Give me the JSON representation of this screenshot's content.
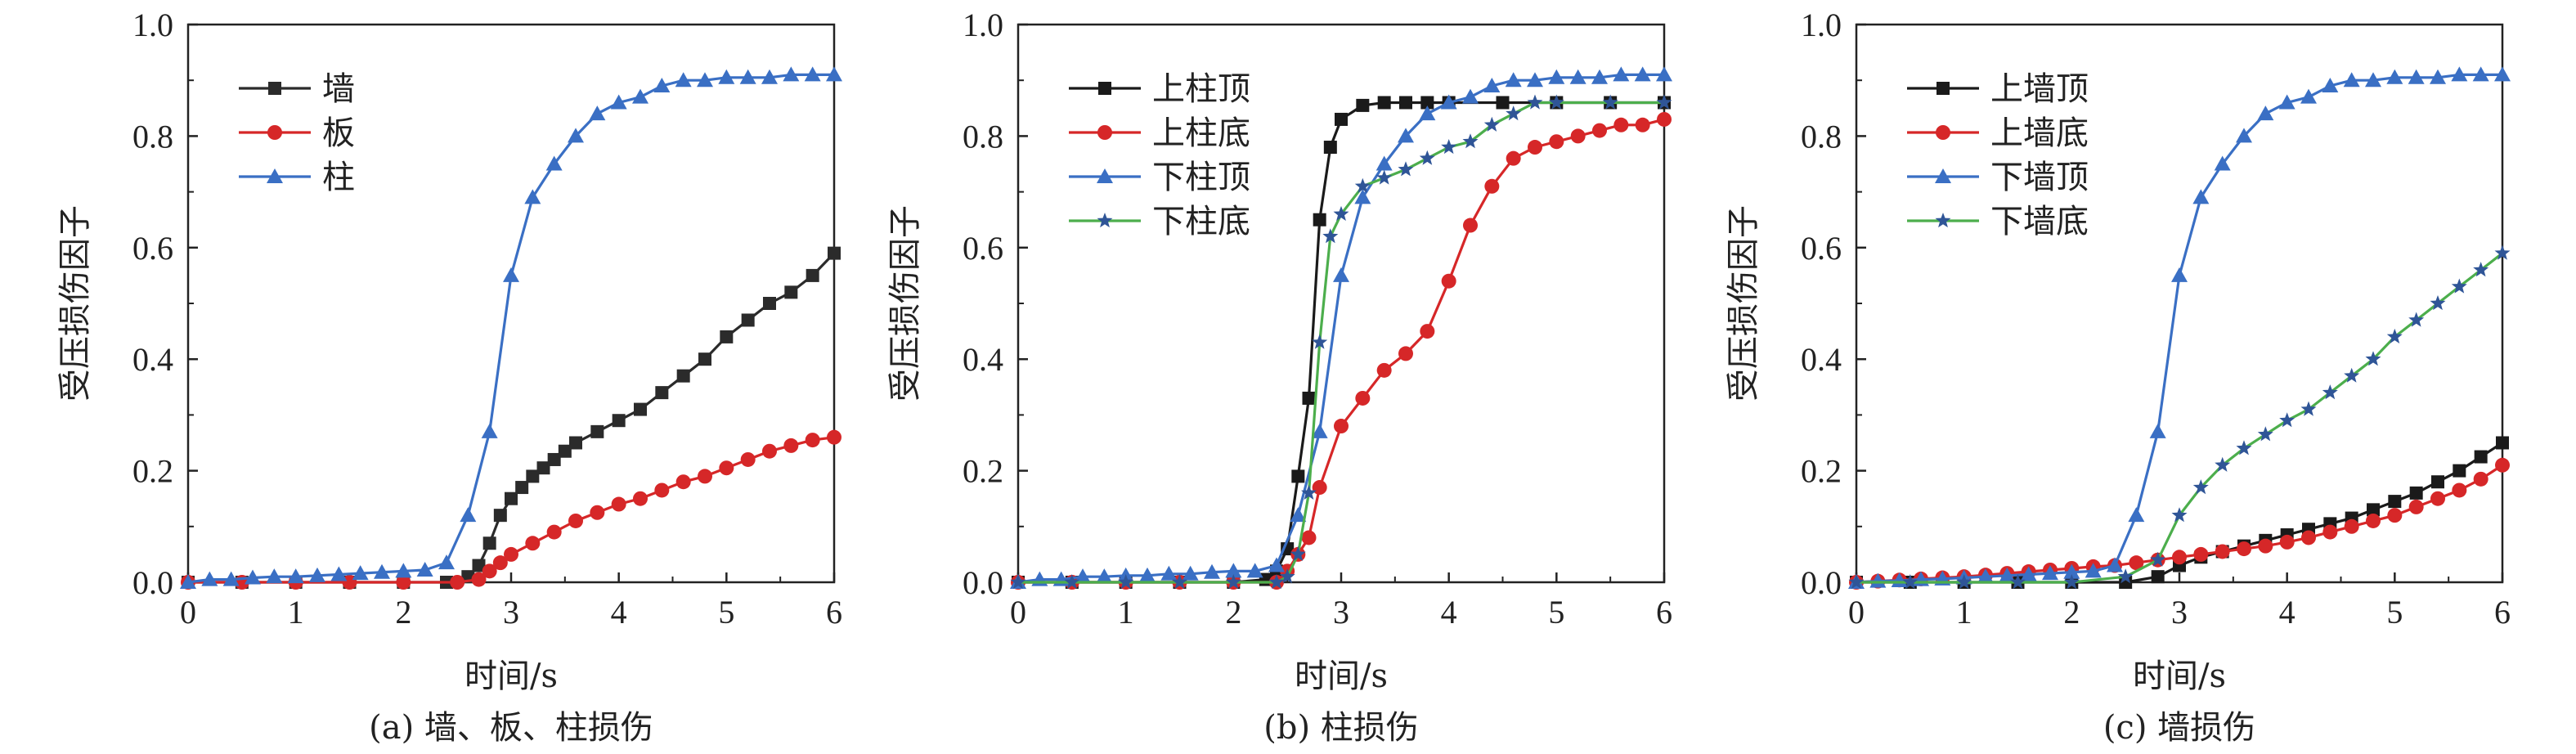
{
  "chart_data": [
    {
      "type": "line",
      "caption": "(a) 墙、板、柱损伤",
      "xlabel": "时间/s",
      "ylabel": "受压损伤因子",
      "xlim": [
        0,
        6
      ],
      "ylim": [
        0,
        1.0
      ],
      "xticks": [
        "0",
        "1",
        "2",
        "3",
        "4",
        "5",
        "6"
      ],
      "yticks": [
        "0.0",
        "0.2",
        "0.4",
        "0.6",
        "0.8",
        "1.0"
      ],
      "legend_position": "top-left",
      "series": [
        {
          "name": "墙",
          "color": "#2b2b2b",
          "marker": "square",
          "x": [
            0,
            0.5,
            1.0,
            1.5,
            2.0,
            2.4,
            2.6,
            2.7,
            2.8,
            2.9,
            3.0,
            3.1,
            3.2,
            3.3,
            3.4,
            3.5,
            3.6,
            3.8,
            4.0,
            4.2,
            4.4,
            4.6,
            4.8,
            5.0,
            5.2,
            5.4,
            5.6,
            5.8,
            6.0
          ],
          "y": [
            0.0,
            0.0,
            0.0,
            0.0,
            0.0,
            0.0,
            0.01,
            0.03,
            0.07,
            0.12,
            0.15,
            0.17,
            0.19,
            0.205,
            0.22,
            0.235,
            0.25,
            0.27,
            0.29,
            0.31,
            0.34,
            0.37,
            0.4,
            0.44,
            0.47,
            0.5,
            0.52,
            0.55,
            0.59
          ]
        },
        {
          "name": "板",
          "color": "#d62728",
          "marker": "circle",
          "x": [
            0,
            0.5,
            1.0,
            1.5,
            2.0,
            2.5,
            2.7,
            2.8,
            2.9,
            3.0,
            3.2,
            3.4,
            3.6,
            3.8,
            4.0,
            4.2,
            4.4,
            4.6,
            4.8,
            5.0,
            5.2,
            5.4,
            5.6,
            5.8,
            6.0
          ],
          "y": [
            0.0,
            0.0,
            0.0,
            0.0,
            0.0,
            0.0,
            0.005,
            0.02,
            0.035,
            0.05,
            0.07,
            0.09,
            0.11,
            0.125,
            0.14,
            0.15,
            0.165,
            0.18,
            0.19,
            0.205,
            0.22,
            0.235,
            0.245,
            0.255,
            0.26
          ]
        },
        {
          "name": "柱",
          "color": "#3a6fc4",
          "marker": "triangle",
          "x": [
            0,
            0.2,
            0.4,
            0.6,
            0.8,
            1.0,
            1.2,
            1.4,
            1.6,
            1.8,
            2.0,
            2.2,
            2.4,
            2.6,
            2.8,
            3.0,
            3.2,
            3.4,
            3.6,
            3.8,
            4.0,
            4.2,
            4.4,
            4.6,
            4.8,
            5.0,
            5.2,
            5.4,
            5.6,
            5.8,
            6.0
          ],
          "y": [
            0.0,
            0.005,
            0.005,
            0.008,
            0.01,
            0.01,
            0.012,
            0.014,
            0.016,
            0.018,
            0.02,
            0.022,
            0.035,
            0.12,
            0.27,
            0.55,
            0.69,
            0.75,
            0.8,
            0.84,
            0.86,
            0.87,
            0.89,
            0.9,
            0.9,
            0.905,
            0.905,
            0.905,
            0.91,
            0.91,
            0.91
          ]
        }
      ]
    },
    {
      "type": "line",
      "caption": "(b) 柱损伤",
      "xlabel": "时间/s",
      "ylabel": "受压损伤因子",
      "xlim": [
        0,
        6
      ],
      "ylim": [
        0,
        1.0
      ],
      "xticks": [
        "0",
        "1",
        "2",
        "3",
        "4",
        "5",
        "6"
      ],
      "yticks": [
        "0.0",
        "0.2",
        "0.4",
        "0.6",
        "0.8",
        "1.0"
      ],
      "legend_position": "top-left",
      "series": [
        {
          "name": "上柱顶",
          "color": "#1a1a1a",
          "marker": "square",
          "x": [
            0,
            0.5,
            1.0,
            1.5,
            2.0,
            2.3,
            2.4,
            2.5,
            2.6,
            2.7,
            2.8,
            2.9,
            3.0,
            3.2,
            3.4,
            3.6,
            3.8,
            4.0,
            4.5,
            5.0,
            5.5,
            6.0
          ],
          "y": [
            0.0,
            0.0,
            0.0,
            0.0,
            0.0,
            0.005,
            0.02,
            0.06,
            0.19,
            0.33,
            0.65,
            0.78,
            0.83,
            0.855,
            0.86,
            0.86,
            0.86,
            0.86,
            0.86,
            0.86,
            0.86,
            0.86
          ]
        },
        {
          "name": "上柱底",
          "color": "#d62728",
          "marker": "circle",
          "x": [
            0,
            0.5,
            1.0,
            1.5,
            2.0,
            2.4,
            2.5,
            2.6,
            2.7,
            2.8,
            3.0,
            3.2,
            3.4,
            3.6,
            3.8,
            4.0,
            4.2,
            4.4,
            4.6,
            4.8,
            5.0,
            5.2,
            5.4,
            5.6,
            5.8,
            6.0
          ],
          "y": [
            0.0,
            0.0,
            0.0,
            0.0,
            0.0,
            0.0,
            0.02,
            0.05,
            0.08,
            0.17,
            0.28,
            0.33,
            0.38,
            0.41,
            0.45,
            0.54,
            0.64,
            0.71,
            0.76,
            0.78,
            0.79,
            0.8,
            0.81,
            0.82,
            0.82,
            0.83
          ]
        },
        {
          "name": "下柱顶",
          "color": "#3a6fc4",
          "marker": "triangle",
          "x": [
            0,
            0.2,
            0.4,
            0.6,
            0.8,
            1.0,
            1.2,
            1.4,
            1.6,
            1.8,
            2.0,
            2.2,
            2.4,
            2.6,
            2.8,
            3.0,
            3.2,
            3.4,
            3.6,
            3.8,
            4.0,
            4.2,
            4.4,
            4.6,
            4.8,
            5.0,
            5.2,
            5.4,
            5.6,
            5.8,
            6.0
          ],
          "y": [
            0.0,
            0.005,
            0.005,
            0.01,
            0.01,
            0.012,
            0.012,
            0.015,
            0.015,
            0.018,
            0.02,
            0.02,
            0.03,
            0.12,
            0.27,
            0.55,
            0.69,
            0.75,
            0.8,
            0.84,
            0.86,
            0.87,
            0.89,
            0.9,
            0.9,
            0.905,
            0.905,
            0.905,
            0.91,
            0.91,
            0.91
          ]
        },
        {
          "name": "下柱底",
          "color": "#2f5597",
          "line_color": "#4cae4c",
          "marker": "star",
          "x": [
            0,
            0.5,
            1.0,
            1.5,
            2.0,
            2.4,
            2.5,
            2.6,
            2.7,
            2.8,
            2.9,
            3.0,
            3.2,
            3.4,
            3.6,
            3.8,
            4.0,
            4.2,
            4.4,
            4.6,
            4.8,
            5.0,
            5.5,
            6.0
          ],
          "y": [
            0.0,
            0.0,
            0.0,
            0.0,
            0.0,
            0.0,
            0.01,
            0.05,
            0.16,
            0.43,
            0.62,
            0.66,
            0.71,
            0.725,
            0.74,
            0.76,
            0.78,
            0.79,
            0.82,
            0.84,
            0.86,
            0.86,
            0.86,
            0.86
          ]
        }
      ]
    },
    {
      "type": "line",
      "caption": "(c) 墙损伤",
      "xlabel": "时间/s",
      "ylabel": "受压损伤因子",
      "xlim": [
        0,
        6
      ],
      "ylim": [
        0,
        1.0
      ],
      "xticks": [
        "0",
        "1",
        "2",
        "3",
        "4",
        "5",
        "6"
      ],
      "yticks": [
        "0.0",
        "0.2",
        "0.4",
        "0.6",
        "0.8",
        "1.0"
      ],
      "legend_position": "top-left",
      "series": [
        {
          "name": "上墙顶",
          "color": "#1a1a1a",
          "marker": "square",
          "x": [
            0,
            0.5,
            1.0,
            1.5,
            2.0,
            2.5,
            2.8,
            3.0,
            3.2,
            3.4,
            3.6,
            3.8,
            4.0,
            4.2,
            4.4,
            4.6,
            4.8,
            5.0,
            5.2,
            5.4,
            5.6,
            5.8,
            6.0
          ],
          "y": [
            0.0,
            0.0,
            0.0,
            0.0,
            0.0,
            0.0,
            0.01,
            0.03,
            0.045,
            0.055,
            0.065,
            0.075,
            0.085,
            0.095,
            0.105,
            0.115,
            0.13,
            0.145,
            0.16,
            0.18,
            0.2,
            0.225,
            0.25
          ]
        },
        {
          "name": "上墙底",
          "color": "#d62728",
          "marker": "circle",
          "x": [
            0,
            0.2,
            0.4,
            0.6,
            0.8,
            1.0,
            1.2,
            1.4,
            1.6,
            1.8,
            2.0,
            2.2,
            2.4,
            2.6,
            2.8,
            3.0,
            3.2,
            3.4,
            3.6,
            3.8,
            4.0,
            4.2,
            4.4,
            4.6,
            4.8,
            5.0,
            5.2,
            5.4,
            5.6,
            5.8,
            6.0
          ],
          "y": [
            0.0,
            0.002,
            0.004,
            0.006,
            0.008,
            0.01,
            0.013,
            0.016,
            0.019,
            0.022,
            0.025,
            0.028,
            0.03,
            0.035,
            0.04,
            0.045,
            0.05,
            0.055,
            0.06,
            0.065,
            0.072,
            0.08,
            0.09,
            0.1,
            0.11,
            0.12,
            0.135,
            0.15,
            0.165,
            0.185,
            0.21
          ]
        },
        {
          "name": "下墙顶",
          "color": "#3a6fc4",
          "marker": "triangle",
          "x": [
            0,
            0.2,
            0.4,
            0.6,
            0.8,
            1.0,
            1.2,
            1.4,
            1.6,
            1.8,
            2.0,
            2.2,
            2.4,
            2.6,
            2.8,
            3.0,
            3.2,
            3.4,
            3.6,
            3.8,
            4.0,
            4.2,
            4.4,
            4.6,
            4.8,
            5.0,
            5.2,
            5.4,
            5.6,
            5.8,
            6.0
          ],
          "y": [
            0.0,
            0.002,
            0.003,
            0.005,
            0.006,
            0.008,
            0.01,
            0.012,
            0.014,
            0.016,
            0.018,
            0.02,
            0.03,
            0.12,
            0.27,
            0.55,
            0.69,
            0.75,
            0.8,
            0.84,
            0.86,
            0.87,
            0.89,
            0.9,
            0.9,
            0.905,
            0.905,
            0.905,
            0.91,
            0.91,
            0.91
          ]
        },
        {
          "name": "下墙底",
          "color": "#2f5597",
          "line_color": "#4cae4c",
          "marker": "star",
          "x": [
            0,
            0.5,
            1.0,
            1.5,
            2.0,
            2.5,
            2.8,
            3.0,
            3.2,
            3.4,
            3.6,
            3.8,
            4.0,
            4.2,
            4.4,
            4.6,
            4.8,
            5.0,
            5.2,
            5.4,
            5.6,
            5.8,
            6.0
          ],
          "y": [
            0.0,
            0.0,
            0.0,
            0.0,
            0.0,
            0.01,
            0.04,
            0.12,
            0.17,
            0.21,
            0.24,
            0.265,
            0.29,
            0.31,
            0.34,
            0.37,
            0.4,
            0.44,
            0.47,
            0.5,
            0.53,
            0.56,
            0.59
          ]
        }
      ]
    }
  ]
}
